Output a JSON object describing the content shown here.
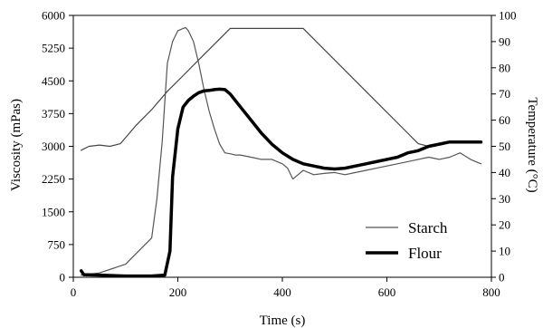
{
  "chart_data": {
    "type": "line",
    "xlabel": "Time (s)",
    "ylabel": "Viscosity (mPas)",
    "y2label": "Temperature (°C)",
    "xlim": [
      0,
      800
    ],
    "ylim": [
      0,
      6000
    ],
    "y2lim": [
      0,
      100
    ],
    "xticks": [
      0,
      200,
      400,
      600,
      800
    ],
    "yticks": [
      0,
      750,
      1500,
      2250,
      3000,
      3750,
      4500,
      5250,
      6000
    ],
    "y2ticks": [
      0,
      10,
      20,
      30,
      40,
      50,
      60,
      70,
      80,
      90,
      100
    ],
    "grid": false,
    "legend_position": "bottom-right",
    "series": [
      {
        "name": "Starch",
        "color": "#555555",
        "style": "thin",
        "x": [
          15,
          50,
          100,
          150,
          160,
          170,
          180,
          190,
          200,
          210,
          215,
          220,
          230,
          240,
          250,
          260,
          270,
          280,
          290,
          300,
          310,
          320,
          340,
          360,
          380,
          400,
          410,
          420,
          430,
          440,
          460,
          480,
          500,
          520,
          540,
          560,
          580,
          600,
          620,
          640,
          660,
          680,
          700,
          720,
          740,
          760,
          780
        ],
        "y": [
          50,
          100,
          300,
          900,
          1800,
          3100,
          4900,
          5400,
          5650,
          5700,
          5720,
          5650,
          5400,
          4900,
          4300,
          3800,
          3400,
          3050,
          2850,
          2830,
          2800,
          2800,
          2750,
          2700,
          2700,
          2600,
          2500,
          2250,
          2350,
          2450,
          2350,
          2380,
          2400,
          2350,
          2400,
          2450,
          2500,
          2550,
          2600,
          2650,
          2700,
          2750,
          2700,
          2750,
          2850,
          2700,
          2600
        ]
      },
      {
        "name": "Flour",
        "color": "#000000",
        "style": "thick",
        "x": [
          15,
          20,
          50,
          100,
          150,
          175,
          185,
          190,
          200,
          210,
          220,
          230,
          240,
          250,
          260,
          270,
          280,
          290,
          300,
          320,
          340,
          360,
          380,
          400,
          420,
          440,
          460,
          480,
          500,
          520,
          540,
          560,
          580,
          600,
          620,
          640,
          660,
          680,
          700,
          720,
          740,
          760,
          780
        ],
        "y": [
          150,
          60,
          50,
          30,
          30,
          50,
          600,
          2300,
          3400,
          3900,
          4050,
          4150,
          4230,
          4270,
          4280,
          4300,
          4310,
          4300,
          4200,
          3900,
          3600,
          3300,
          3050,
          2850,
          2700,
          2600,
          2550,
          2500,
          2480,
          2500,
          2550,
          2600,
          2650,
          2700,
          2750,
          2850,
          2900,
          3000,
          3050,
          3100,
          3100,
          3100,
          3100
        ]
      },
      {
        "name": "",
        "axis": "y2",
        "color": "#444444",
        "style": "thin",
        "x": [
          15,
          30,
          50,
          70,
          90,
          120,
          150,
          180,
          210,
          240,
          270,
          300,
          320,
          440,
          480,
          520,
          560,
          600,
          640,
          660,
          680
        ],
        "y": [
          48.5,
          50,
          50.5,
          50,
          51,
          58,
          64,
          71,
          77,
          83,
          89,
          95,
          95,
          95,
          87,
          79,
          71,
          63,
          55,
          51,
          50
        ]
      }
    ]
  }
}
